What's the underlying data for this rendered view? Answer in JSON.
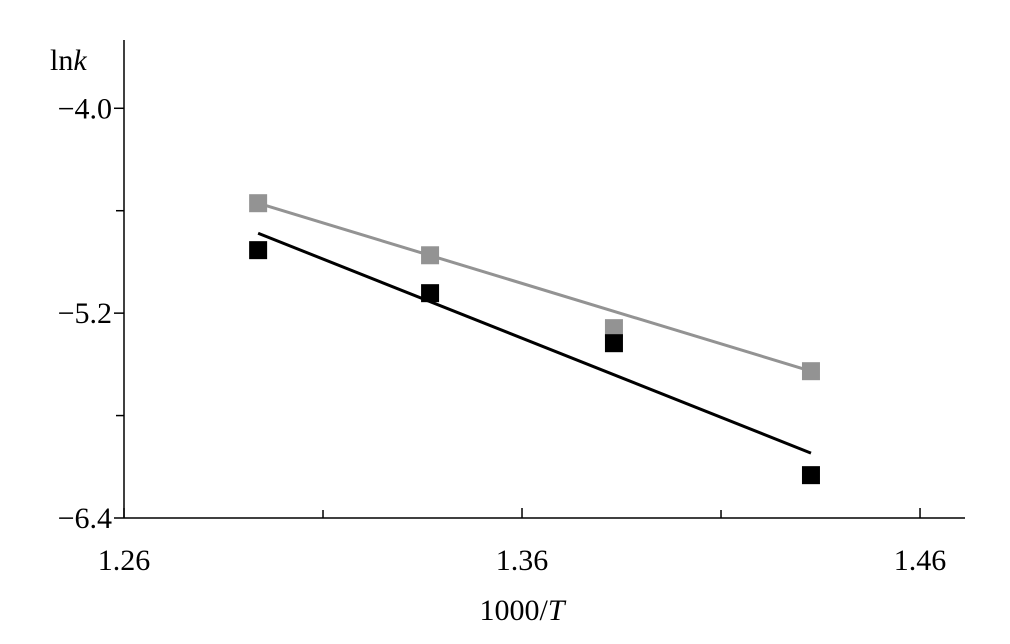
{
  "chart_data": {
    "type": "scatter",
    "xlabel_prefix": "1000/",
    "xlabel_var": "T",
    "ylabel_prefix": "ln",
    "ylabel_var": "k",
    "xlim": [
      1.26,
      1.4713
    ],
    "ylim": [
      -6.4,
      -3.6
    ],
    "xticks": [
      1.26,
      1.36,
      1.46
    ],
    "xminorticks": [
      1.31,
      1.41
    ],
    "yticks": [
      {
        "value": -4.0,
        "label": "−4.0"
      },
      {
        "value": -5.2,
        "label": "−5.2"
      },
      {
        "value": -6.4,
        "label": "−6.4"
      }
    ],
    "yminorticks": [
      -4.6,
      -5.8
    ],
    "series": [
      {
        "color": "#939393",
        "x": [
          1.2937,
          1.3369,
          1.3831,
          1.4326
        ],
        "values": [
          -4.556,
          -4.861,
          -5.288,
          -5.54
        ],
        "fit_x": [
          1.2937,
          1.4326
        ],
        "fit_y": [
          -4.556,
          -5.54
        ]
      },
      {
        "color": "#000000",
        "x": [
          1.2937,
          1.3369,
          1.3831,
          1.4326
        ],
        "values": [
          -4.831,
          -5.083,
          -5.376,
          -6.149
        ],
        "fit_x": [
          1.2937,
          1.4326
        ],
        "fit_y": [
          -4.732,
          -6.02
        ]
      }
    ]
  }
}
